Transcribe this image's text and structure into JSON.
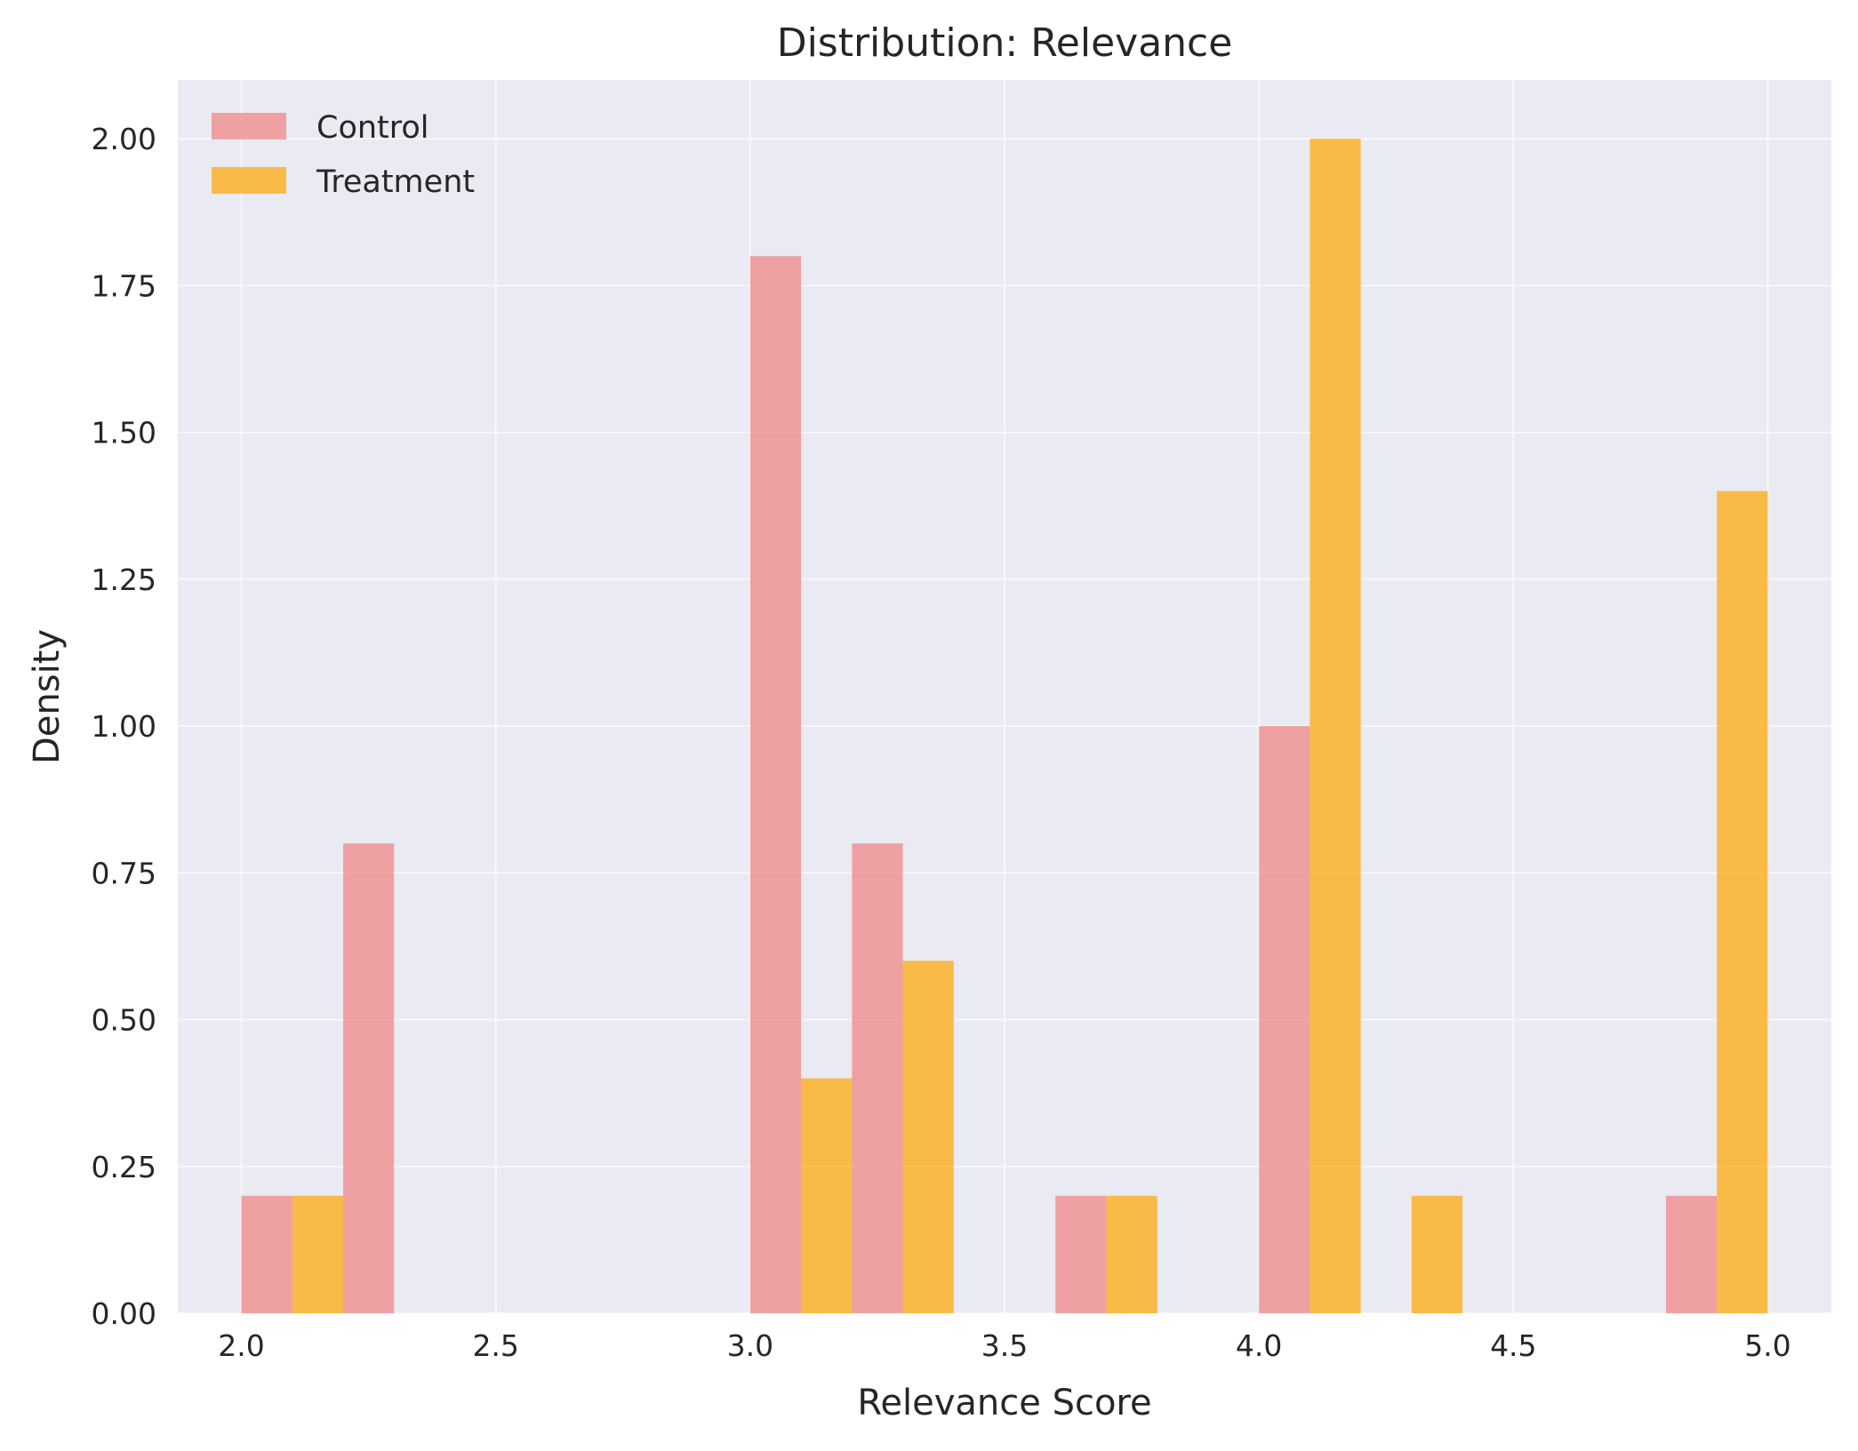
{
  "chart_data": {
    "type": "bar",
    "title": "Distribution: Relevance",
    "xlabel": "Relevance Score",
    "ylabel": "Density",
    "xlim": [
      1.875,
      5.125
    ],
    "ylim": [
      0,
      2.1
    ],
    "x_ticks": [
      "2.0",
      "2.5",
      "3.0",
      "3.5",
      "4.0",
      "4.5",
      "5.0"
    ],
    "y_ticks": [
      "0.00",
      "0.25",
      "0.50",
      "0.75",
      "1.00",
      "1.25",
      "1.50",
      "1.75",
      "2.00"
    ],
    "grid": true,
    "legend_position": "top-left",
    "bin_width": 0.1,
    "series": [
      {
        "name": "Control",
        "color": "#f08080",
        "bins": [
          {
            "x0": 2.0,
            "x1": 2.1,
            "value": 0.2
          },
          {
            "x0": 2.2,
            "x1": 2.3,
            "value": 0.8
          },
          {
            "x0": 3.0,
            "x1": 3.1,
            "value": 1.8
          },
          {
            "x0": 3.2,
            "x1": 3.3,
            "value": 0.8
          },
          {
            "x0": 3.6,
            "x1": 3.7,
            "value": 0.2
          },
          {
            "x0": 4.0,
            "x1": 4.1,
            "value": 1.0
          },
          {
            "x0": 4.8,
            "x1": 4.9,
            "value": 0.2
          }
        ]
      },
      {
        "name": "Treatment",
        "color": "#ffa500",
        "bins": [
          {
            "x0": 2.1,
            "x1": 2.2,
            "value": 0.2
          },
          {
            "x0": 3.1,
            "x1": 3.2,
            "value": 0.4
          },
          {
            "x0": 3.3,
            "x1": 3.4,
            "value": 0.6
          },
          {
            "x0": 3.7,
            "x1": 3.8,
            "value": 0.2
          },
          {
            "x0": 4.1,
            "x1": 4.2,
            "value": 2.0
          },
          {
            "x0": 4.3,
            "x1": 4.4,
            "value": 0.2
          },
          {
            "x0": 4.9,
            "x1": 5.0,
            "value": 1.4
          }
        ]
      }
    ]
  }
}
